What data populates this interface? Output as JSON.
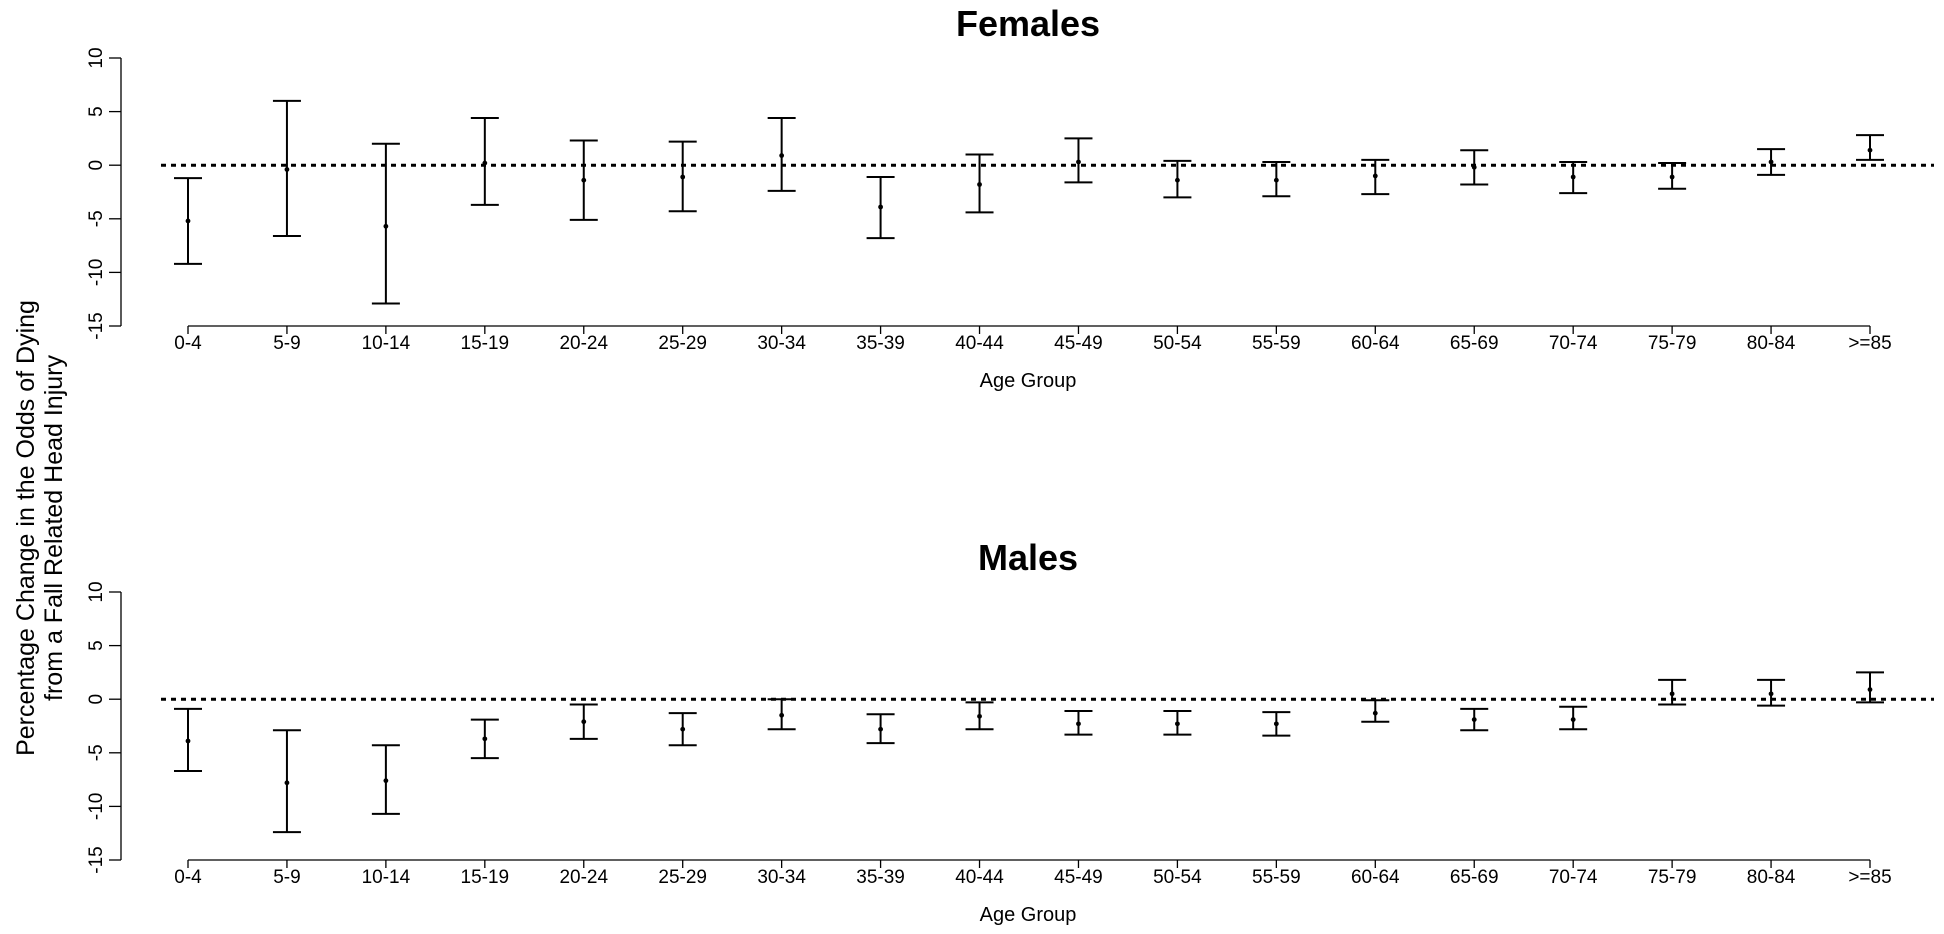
{
  "chart_data": {
    "shared_ylabel": [
      "Percentage Change in the Odds of Dying",
      "from a Fall Related Head Injury"
    ],
    "panels": [
      {
        "type": "errorbar",
        "title": "Females",
        "xlabel": "Age Group",
        "ylim": [
          -15,
          10
        ],
        "yticks": [
          10,
          5,
          0,
          -5,
          -10,
          -15
        ],
        "reference_line": 0,
        "categories": [
          "0-4",
          "5-9",
          "10-14",
          "15-19",
          "20-24",
          "25-29",
          "30-34",
          "35-39",
          "40-44",
          "45-49",
          "50-54",
          "55-59",
          "60-64",
          "65-69",
          "70-74",
          "75-79",
          "80-84",
          ">=85"
        ],
        "estimate": [
          -5.2,
          -0.4,
          -5.7,
          0.2,
          -1.4,
          -1.1,
          0.9,
          -3.9,
          -1.8,
          0.3,
          -1.4,
          -1.4,
          -1.0,
          -0.2,
          -1.1,
          -1.1,
          0.3,
          1.4
        ],
        "lower": [
          -9.2,
          -6.6,
          -12.9,
          -3.7,
          -5.1,
          -4.3,
          -2.4,
          -6.8,
          -4.4,
          -1.6,
          -3.0,
          -2.9,
          -2.7,
          -1.8,
          -2.6,
          -2.2,
          -0.9,
          0.5
        ],
        "upper": [
          -1.2,
          6.0,
          2.0,
          4.4,
          2.3,
          2.2,
          4.4,
          -1.1,
          1.0,
          2.5,
          0.4,
          0.3,
          0.5,
          1.4,
          0.3,
          0.2,
          1.5,
          2.8
        ]
      },
      {
        "type": "errorbar",
        "title": "Males",
        "xlabel": "Age Group",
        "ylim": [
          -15,
          10
        ],
        "yticks": [
          10,
          5,
          0,
          -5,
          -10,
          -15
        ],
        "reference_line": 0,
        "categories": [
          "0-4",
          "5-9",
          "10-14",
          "15-19",
          "20-24",
          "25-29",
          "30-34",
          "35-39",
          "40-44",
          "45-49",
          "50-54",
          "55-59",
          "60-64",
          "65-69",
          "70-74",
          "75-79",
          "80-84",
          ">=85"
        ],
        "estimate": [
          -3.9,
          -7.8,
          -7.6,
          -3.7,
          -2.1,
          -2.8,
          -1.5,
          -2.8,
          -1.6,
          -2.3,
          -2.3,
          -2.3,
          -1.3,
          -1.9,
          -1.9,
          0.5,
          0.5,
          0.9
        ],
        "lower": [
          -6.7,
          -12.4,
          -10.7,
          -5.5,
          -3.7,
          -4.3,
          -2.8,
          -4.1,
          -2.8,
          -3.3,
          -3.3,
          -3.4,
          -2.1,
          -2.9,
          -2.8,
          -0.5,
          -0.6,
          -0.3
        ],
        "upper": [
          -0.9,
          -2.9,
          -4.3,
          -1.9,
          -0.5,
          -1.3,
          0.0,
          -1.4,
          -0.3,
          -1.1,
          -1.1,
          -1.2,
          -0.1,
          -0.9,
          -0.7,
          1.8,
          1.8,
          2.5
        ]
      }
    ]
  }
}
